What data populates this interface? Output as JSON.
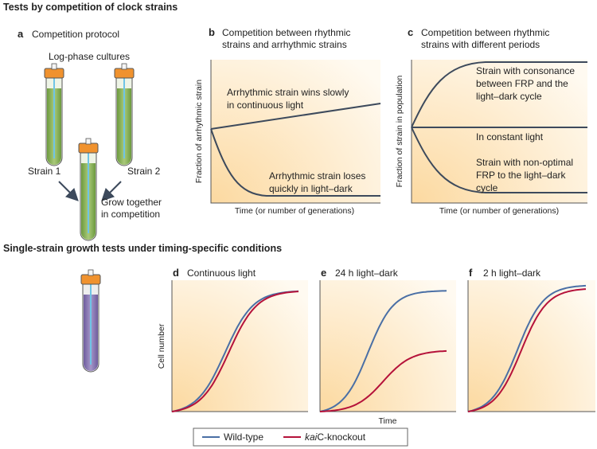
{
  "section_1": {
    "title": "Tests by competition of clock strains",
    "panel_a": {
      "letter": "a",
      "title": "Competition protocol",
      "cultures": "Log-phase cultures",
      "strain_1": "Strain 1",
      "strain_2": "Strain 2",
      "result": [
        "Grow together",
        "in competition"
      ]
    },
    "panel_b": {
      "letter": "b",
      "title": [
        "Competition between rhythmic",
        "strains and arrhythmic strains"
      ],
      "y_label": "Fraction of arrhythmic strain",
      "x_label": "Time (or number of generations)",
      "annotation_wins": [
        "Arrhythmic strain wins slowly",
        "in continuous light"
      ],
      "annotation_loses": [
        "Arrhythmic strain loses",
        "quickly in light–dark"
      ]
    },
    "panel_c": {
      "letter": "c",
      "title": [
        "Competition between rhythmic",
        "strains with different periods"
      ],
      "y_label": "Fraction of strain in population",
      "x_label": "Time (or number of generations)",
      "annotation_top": [
        "Strain with consonance",
        "between FRP and the",
        "light–dark cycle"
      ],
      "annotation_middle": "In constant light",
      "annotation_bottom": [
        "Strain with non-optimal",
        "FRP to the light–dark",
        "cycle"
      ]
    }
  },
  "section_2": {
    "title": "Single-strain growth tests under timing-specific conditions",
    "panels": [
      {
        "letter": "d",
        "title": "Continuous light"
      },
      {
        "letter": "e",
        "title": "24 h light–dark"
      },
      {
        "letter": "f",
        "title": "2 h light–dark"
      }
    ],
    "y_label": "Cell number",
    "x_label": "Time",
    "legend": [
      {
        "label": "Wild-type"
      },
      {
        "label_italic": "kai",
        "label_rest": "C-knockout"
      }
    ]
  }
}
